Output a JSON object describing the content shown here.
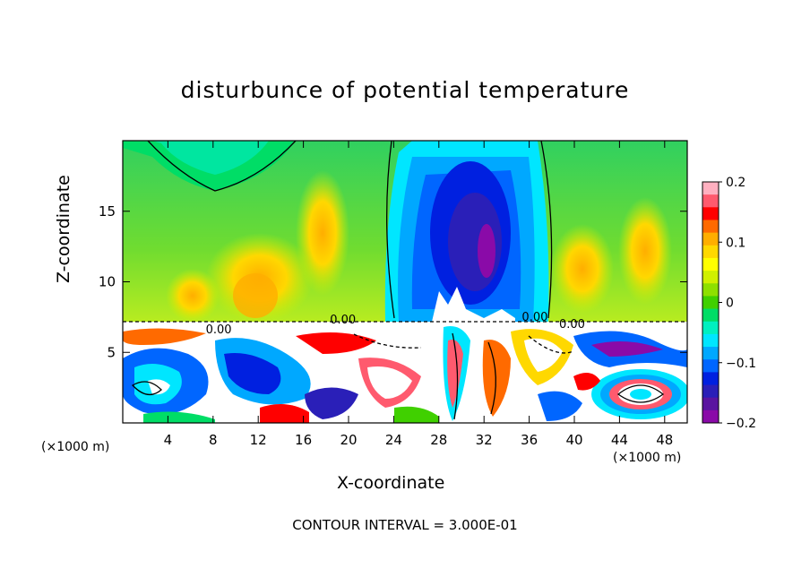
{
  "chart_data": {
    "type": "heatmap",
    "title": "disturbunce of potential temperature",
    "xlabel": "X-coordinate",
    "ylabel": "Z-coordinate",
    "x_unit_label": "(×1000 m)",
    "x_unit_label_right": "(×1000 m)",
    "xlim": [
      0,
      50
    ],
    "ylim": [
      0,
      20
    ],
    "x_ticks": [
      4,
      8,
      12,
      16,
      20,
      24,
      28,
      32,
      36,
      40,
      44,
      48
    ],
    "y_ticks": [
      5,
      10,
      15
    ],
    "colorbar": {
      "range": [
        -0.2,
        0.2
      ],
      "ticks": [
        "0.2",
        "0.1",
        "0",
        "−0.1",
        "−0.2"
      ],
      "colors": [
        "#ffb0c0",
        "#ff5a6e",
        "#ff0000",
        "#ff6a00",
        "#ffae00",
        "#ffd800",
        "#ffff00",
        "#d0f000",
        "#8ee000",
        "#40d000",
        "#00dd66",
        "#00f0c0",
        "#00e6ff",
        "#00a8ff",
        "#0066ff",
        "#0020e0",
        "#2a1fb8",
        "#5a14a0",
        "#8a0aa8"
      ]
    },
    "contour_labels": [
      "0.00",
      "0.00",
      "0.00",
      "0.00"
    ],
    "footer": "CONTOUR INTERVAL = 3.000E-01"
  }
}
